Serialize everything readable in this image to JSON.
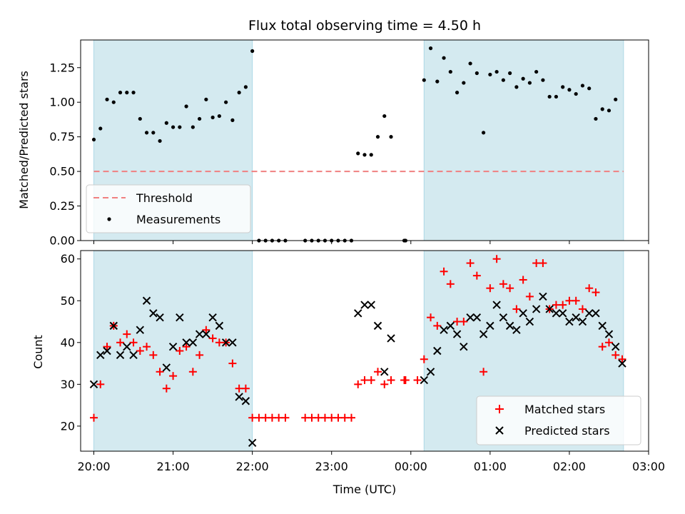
{
  "chart_data": [
    {
      "type": "scatter",
      "title": "Flux total observing time = 4.50 h",
      "ylabel": "Matched/Predicted stars",
      "xlabel": "",
      "ylim": [
        0,
        1.45
      ],
      "xlim": [
        "19:50",
        "03:00"
      ],
      "yticks": [
        "0.00",
        "0.25",
        "0.50",
        "0.75",
        "1.00",
        "1.25"
      ],
      "grid": false,
      "legend_position": "bottom-left",
      "shaded_intervals": [
        [
          "20:00",
          "22:00"
        ],
        [
          "00:10",
          "02:41"
        ]
      ],
      "threshold": {
        "name": "Threshold",
        "value": 0.5,
        "color": "#f08080"
      },
      "series": [
        {
          "name": "Measurements",
          "color": "#000000",
          "points": [
            [
              "20:00",
              0.73
            ],
            [
              "20:05",
              0.81
            ],
            [
              "20:10",
              1.02
            ],
            [
              "20:15",
              1.0
            ],
            [
              "20:20",
              1.07
            ],
            [
              "20:25",
              1.07
            ],
            [
              "20:30",
              1.07
            ],
            [
              "20:35",
              0.88
            ],
            [
              "20:40",
              0.78
            ],
            [
              "20:45",
              0.78
            ],
            [
              "20:50",
              0.72
            ],
            [
              "20:55",
              0.85
            ],
            [
              "21:00",
              0.82
            ],
            [
              "21:05",
              0.82
            ],
            [
              "21:10",
              0.97
            ],
            [
              "21:15",
              0.82
            ],
            [
              "21:20",
              0.88
            ],
            [
              "21:25",
              1.02
            ],
            [
              "21:30",
              0.89
            ],
            [
              "21:35",
              0.9
            ],
            [
              "21:40",
              1.0
            ],
            [
              "21:45",
              0.87
            ],
            [
              "21:50",
              1.07
            ],
            [
              "21:55",
              1.11
            ],
            [
              "22:00",
              1.37
            ],
            [
              "22:05",
              0.0
            ],
            [
              "22:10",
              0.0
            ],
            [
              "22:15",
              0.0
            ],
            [
              "22:20",
              0.0
            ],
            [
              "22:25",
              0.0
            ],
            [
              "22:40",
              0.0
            ],
            [
              "22:45",
              0.0
            ],
            [
              "22:50",
              0.0
            ],
            [
              "22:55",
              0.0
            ],
            [
              "23:00",
              0.0
            ],
            [
              "23:05",
              0.0
            ],
            [
              "23:10",
              0.0
            ],
            [
              "23:15",
              0.0
            ],
            [
              "23:20",
              0.63
            ],
            [
              "23:25",
              0.62
            ],
            [
              "23:30",
              0.62
            ],
            [
              "23:35",
              0.75
            ],
            [
              "23:40",
              0.9
            ],
            [
              "23:45",
              0.75
            ],
            [
              "23:55",
              0.0
            ],
            [
              "23:56",
              0.0
            ],
            [
              "00:10",
              1.16
            ],
            [
              "00:15",
              1.39
            ],
            [
              "00:20",
              1.15
            ],
            [
              "00:25",
              1.32
            ],
            [
              "00:30",
              1.22
            ],
            [
              "00:35",
              1.07
            ],
            [
              "00:40",
              1.14
            ],
            [
              "00:45",
              1.28
            ],
            [
              "00:50",
              1.21
            ],
            [
              "00:55",
              0.78
            ],
            [
              "01:00",
              1.2
            ],
            [
              "01:05",
              1.22
            ],
            [
              "01:10",
              1.16
            ],
            [
              "01:15",
              1.21
            ],
            [
              "01:20",
              1.11
            ],
            [
              "01:25",
              1.17
            ],
            [
              "01:30",
              1.14
            ],
            [
              "01:35",
              1.22
            ],
            [
              "01:40",
              1.16
            ],
            [
              "01:45",
              1.04
            ],
            [
              "01:50",
              1.04
            ],
            [
              "01:55",
              1.11
            ],
            [
              "02:00",
              1.09
            ],
            [
              "02:05",
              1.06
            ],
            [
              "02:10",
              1.12
            ],
            [
              "02:15",
              1.1
            ],
            [
              "02:20",
              0.88
            ],
            [
              "02:25",
              0.95
            ],
            [
              "02:30",
              0.94
            ],
            [
              "02:35",
              1.02
            ]
          ]
        }
      ]
    },
    {
      "type": "scatter",
      "title": "",
      "xlabel": "Time (UTC)",
      "ylabel": "Count",
      "ylim": [
        14,
        62
      ],
      "xlim": [
        "19:50",
        "03:00"
      ],
      "xticks": [
        "20:00",
        "21:00",
        "22:00",
        "23:00",
        "00:00",
        "01:00",
        "02:00",
        "03:00"
      ],
      "yticks": [
        "20",
        "30",
        "40",
        "50",
        "60"
      ],
      "grid": false,
      "legend_position": "bottom-right",
      "shaded_intervals": [
        [
          "20:00",
          "22:00"
        ],
        [
          "00:10",
          "02:41"
        ]
      ],
      "series": [
        {
          "name": "Matched stars",
          "marker": "+",
          "color": "#ff0000",
          "points": [
            [
              "20:00",
              22
            ],
            [
              "20:05",
              30
            ],
            [
              "20:10",
              39
            ],
            [
              "20:15",
              44
            ],
            [
              "20:20",
              40
            ],
            [
              "20:25",
              42
            ],
            [
              "20:30",
              40
            ],
            [
              "20:35",
              38
            ],
            [
              "20:40",
              39
            ],
            [
              "20:45",
              37
            ],
            [
              "20:50",
              33
            ],
            [
              "20:55",
              29
            ],
            [
              "21:00",
              32
            ],
            [
              "21:05",
              38
            ],
            [
              "21:10",
              39
            ],
            [
              "21:15",
              33
            ],
            [
              "21:20",
              37
            ],
            [
              "21:25",
              43
            ],
            [
              "21:30",
              41
            ],
            [
              "21:35",
              40
            ],
            [
              "21:40",
              40
            ],
            [
              "21:45",
              35
            ],
            [
              "21:50",
              29
            ],
            [
              "21:55",
              29
            ],
            [
              "22:00",
              22
            ],
            [
              "22:05",
              22
            ],
            [
              "22:10",
              22
            ],
            [
              "22:15",
              22
            ],
            [
              "22:20",
              22
            ],
            [
              "22:25",
              22
            ],
            [
              "22:40",
              22
            ],
            [
              "22:45",
              22
            ],
            [
              "22:50",
              22
            ],
            [
              "22:55",
              22
            ],
            [
              "23:00",
              22
            ],
            [
              "23:05",
              22
            ],
            [
              "23:10",
              22
            ],
            [
              "23:15",
              22
            ],
            [
              "23:20",
              30
            ],
            [
              "23:25",
              31
            ],
            [
              "23:30",
              31
            ],
            [
              "23:35",
              33
            ],
            [
              "23:40",
              30
            ],
            [
              "23:45",
              31
            ],
            [
              "23:55",
              31
            ],
            [
              "23:56",
              31
            ],
            [
              "00:05",
              31
            ],
            [
              "00:10",
              36
            ],
            [
              "00:15",
              46
            ],
            [
              "00:20",
              44
            ],
            [
              "00:25",
              57
            ],
            [
              "00:30",
              54
            ],
            [
              "00:35",
              45
            ],
            [
              "00:40",
              45
            ],
            [
              "00:45",
              59
            ],
            [
              "00:50",
              56
            ],
            [
              "00:55",
              33
            ],
            [
              "01:00",
              53
            ],
            [
              "01:05",
              60
            ],
            [
              "01:10",
              54
            ],
            [
              "01:15",
              53
            ],
            [
              "01:20",
              48
            ],
            [
              "01:25",
              55
            ],
            [
              "01:30",
              51
            ],
            [
              "01:35",
              59
            ],
            [
              "01:40",
              59
            ],
            [
              "01:45",
              48
            ],
            [
              "01:50",
              49
            ],
            [
              "01:55",
              49
            ],
            [
              "02:00",
              50
            ],
            [
              "02:05",
              50
            ],
            [
              "02:10",
              48
            ],
            [
              "02:15",
              53
            ],
            [
              "02:20",
              52
            ],
            [
              "02:25",
              39
            ],
            [
              "02:30",
              40
            ],
            [
              "02:35",
              37
            ],
            [
              "02:40",
              36
            ]
          ]
        },
        {
          "name": "Predicted stars",
          "marker": "x",
          "color": "#000000",
          "points": [
            [
              "20:00",
              30
            ],
            [
              "20:05",
              37
            ],
            [
              "20:10",
              38
            ],
            [
              "20:15",
              44
            ],
            [
              "20:20",
              37
            ],
            [
              "20:25",
              39
            ],
            [
              "20:30",
              37
            ],
            [
              "20:35",
              43
            ],
            [
              "20:40",
              50
            ],
            [
              "20:45",
              47
            ],
            [
              "20:50",
              46
            ],
            [
              "20:55",
              34
            ],
            [
              "21:00",
              39
            ],
            [
              "21:05",
              46
            ],
            [
              "21:10",
              40
            ],
            [
              "21:15",
              40
            ],
            [
              "21:20",
              42
            ],
            [
              "21:25",
              42
            ],
            [
              "21:30",
              46
            ],
            [
              "21:35",
              44
            ],
            [
              "21:40",
              40
            ],
            [
              "21:45",
              40
            ],
            [
              "21:50",
              27
            ],
            [
              "21:55",
              26
            ],
            [
              "22:00",
              16
            ],
            [
              "23:20",
              47
            ],
            [
              "23:25",
              49
            ],
            [
              "23:30",
              49
            ],
            [
              "23:35",
              44
            ],
            [
              "23:40",
              33
            ],
            [
              "23:45",
              41
            ],
            [
              "00:10",
              31
            ],
            [
              "00:15",
              33
            ],
            [
              "00:20",
              38
            ],
            [
              "00:25",
              43
            ],
            [
              "00:30",
              44
            ],
            [
              "00:35",
              42
            ],
            [
              "00:40",
              39
            ],
            [
              "00:45",
              46
            ],
            [
              "00:50",
              46
            ],
            [
              "00:55",
              42
            ],
            [
              "01:00",
              44
            ],
            [
              "01:05",
              49
            ],
            [
              "01:10",
              46
            ],
            [
              "01:15",
              44
            ],
            [
              "01:20",
              43
            ],
            [
              "01:25",
              47
            ],
            [
              "01:30",
              45
            ],
            [
              "01:35",
              48
            ],
            [
              "01:40",
              51
            ],
            [
              "01:45",
              48
            ],
            [
              "01:50",
              47
            ],
            [
              "01:55",
              47
            ],
            [
              "02:00",
              45
            ],
            [
              "02:05",
              46
            ],
            [
              "02:10",
              45
            ],
            [
              "02:15",
              47
            ],
            [
              "02:20",
              47
            ],
            [
              "02:25",
              44
            ],
            [
              "02:30",
              42
            ],
            [
              "02:35",
              39
            ],
            [
              "02:40",
              35
            ]
          ]
        }
      ]
    }
  ],
  "colors": {
    "shade": "#d4eaf0",
    "shade_edge": "#add8e6",
    "threshold": "#f08080",
    "matched": "#ff0000",
    "predicted": "#000000"
  }
}
